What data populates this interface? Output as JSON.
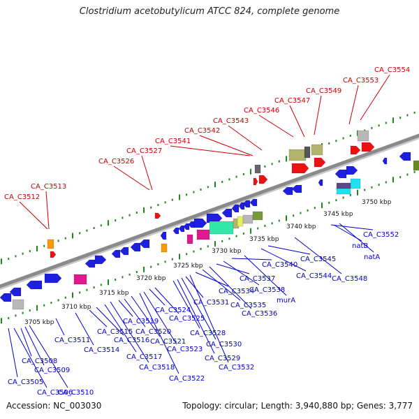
{
  "title": "Clostridium acetobutylicum ATCC 824, complete genome",
  "footer": {
    "accession": "Accession: NC_003030",
    "summary": "Topology: circular; Length: 3,940,880 bp; Genes: 3,777"
  },
  "kbp_labels": [
    "3705 kbp",
    "3710 kbp",
    "3715 kbp",
    "3720 kbp",
    "3725 kbp",
    "3730 kbp",
    "3735 kbp",
    "3740 kbp",
    "3745 kbp",
    "3750 kbp"
  ],
  "upper_labels": [
    "CA_C3512",
    "CA_C3513",
    "CA_C3526",
    "CA_C3527",
    "CA_C3541",
    "CA_C3542",
    "CA_C3543",
    "CA_C3546",
    "CA_C3547",
    "CA_C3549",
    "CA_C3553",
    "CA_C3554"
  ],
  "lower_labels": [
    "CA_C3505",
    "CA_C3506",
    "CA_C3508",
    "CA_C3509",
    "CA_C3510",
    "CA_C3511",
    "CA_C3514",
    "CA_C3515",
    "CA_C3516",
    "CA_C3517",
    "CA_C3518",
    "CA_C3519",
    "CA_C3520",
    "CA_C3521",
    "CA_C3522",
    "CA_C3523",
    "CA_C3524",
    "CA_C3525",
    "CA_C3528",
    "CA_C3529",
    "CA_C3530",
    "CA_C3531",
    "CA_C3532",
    "CA_C3534",
    "CA_C3535",
    "CA_C3536",
    "CA_C3537",
    "CA_C3538",
    "CA_C3540",
    "CA_C3544",
    "CA_C3545",
    "CA_C3548",
    "CA_C3552",
    "murA",
    "natB",
    "natA"
  ],
  "colors": {
    "backbone": "#8a8a8a",
    "forward_track": "#1a8a1a",
    "upper_label": "#cc0000",
    "lower_label": "#0000cc",
    "gene_blue": "#1f1fe0",
    "gene_red": "#ee1111",
    "gene_orange": "#ff9900",
    "gene_magenta": "#e0198e",
    "gene_mint": "#33e8a8",
    "gene_olive": "#b4b46e",
    "gene_gray": "#b8b8b8",
    "gene_cyan": "#22e0f0",
    "gene_purple": "#5a4a8c"
  }
}
